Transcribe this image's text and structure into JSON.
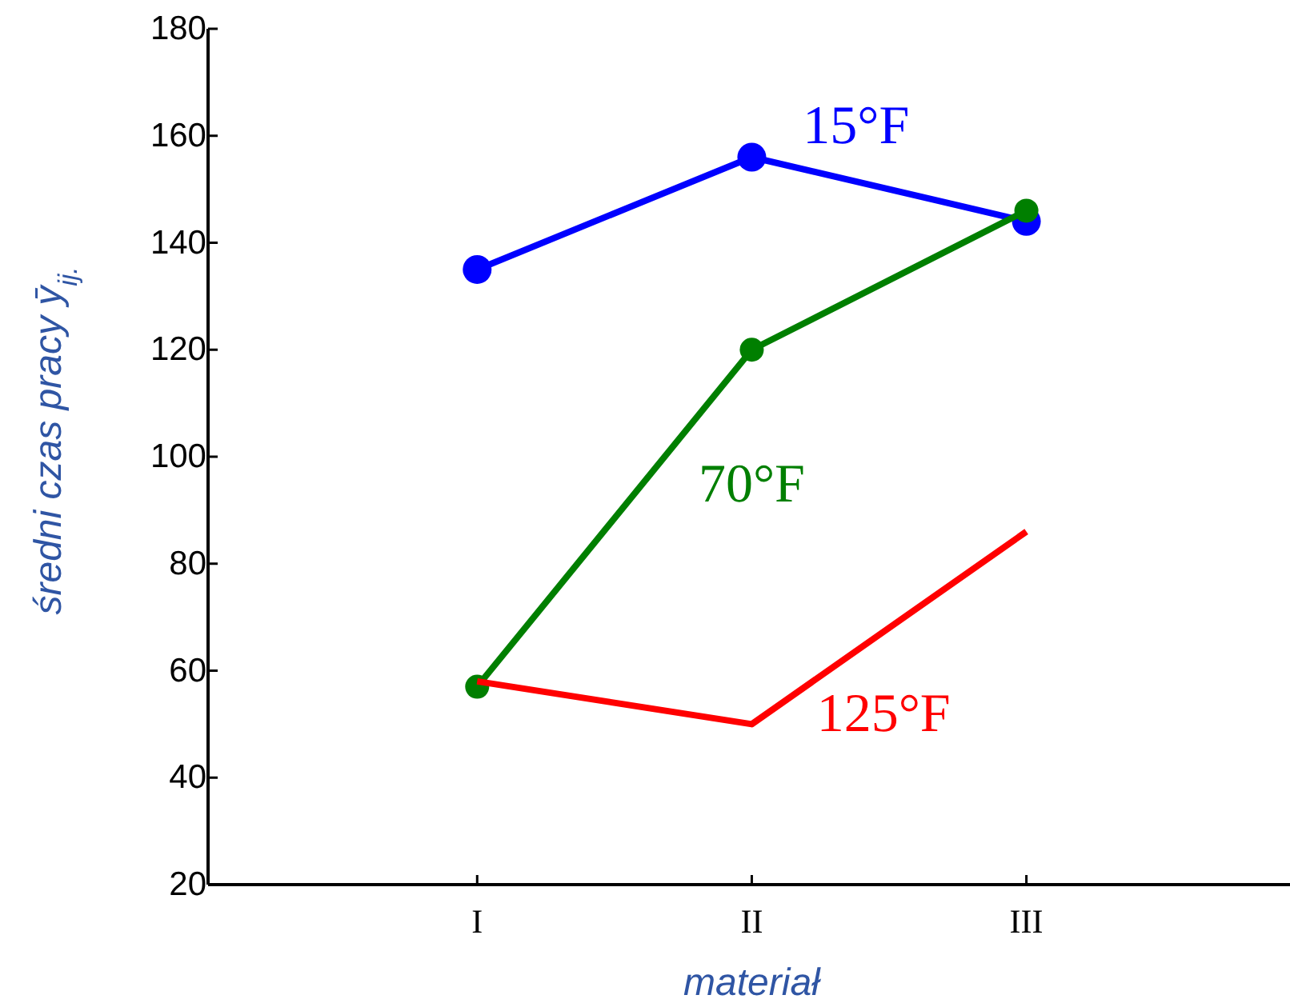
{
  "chart_data": {
    "type": "line",
    "xlabel": "materiał",
    "ylabel": "średni czas pracy ȳ$_{ij.}$",
    "categories": [
      "I",
      "II",
      "III"
    ],
    "ylim": [
      20,
      180
    ],
    "yticks": [
      20,
      40,
      60,
      80,
      100,
      120,
      140,
      160,
      180
    ],
    "grid": false,
    "legend": false,
    "series": [
      {
        "name": "15°F",
        "color": "#0000ff",
        "values": [
          135,
          156,
          144
        ],
        "marker": "circle"
      },
      {
        "name": "70°F",
        "color": "#007f00",
        "values": [
          57,
          120,
          146
        ],
        "marker": "circle"
      },
      {
        "name": "125°F",
        "color": "#ff0000",
        "values": [
          58,
          50,
          86
        ],
        "marker": "none"
      }
    ]
  }
}
